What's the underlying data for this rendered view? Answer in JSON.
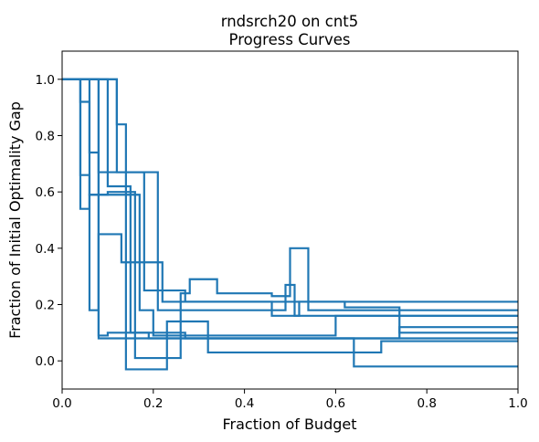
{
  "chart_data": {
    "type": "line",
    "title": [
      "rndsrch20 on cnt5",
      "Progress Curves"
    ],
    "xlabel": "Fraction of Budget",
    "ylabel": "Fraction of Initial Optimality Gap",
    "xlim": [
      0,
      1
    ],
    "ylim": [
      -0.1,
      1.1
    ],
    "xticks": [
      0.0,
      0.2,
      0.4,
      0.6,
      0.8,
      1.0
    ],
    "xtick_labels": [
      "0.0",
      "0.2",
      "0.4",
      "0.6",
      "0.8",
      "1.0"
    ],
    "yticks": [
      0.0,
      0.2,
      0.4,
      0.6,
      0.8,
      1.0
    ],
    "ytick_labels": [
      "0.0",
      "0.2",
      "0.4",
      "0.6",
      "0.8",
      "1.0"
    ],
    "grid": false,
    "step": "post",
    "color": "#1f77b4",
    "series": [
      {
        "x": [
          0,
          0.04,
          0.04,
          0.06,
          0.06,
          0.08,
          0.08,
          0.13,
          0.13,
          0.22,
          0.22,
          0.46,
          0.46,
          0.52,
          0.52,
          1.0
        ],
        "y": [
          1.0,
          1.0,
          0.92,
          0.92,
          0.18,
          0.18,
          0.45,
          0.45,
          0.35,
          0.35,
          0.21,
          0.21,
          0.16,
          0.16,
          0.21,
          0.21
        ]
      },
      {
        "x": [
          0,
          0.06,
          0.06,
          0.08,
          0.08,
          0.21,
          0.21,
          0.49,
          0.49,
          0.51,
          0.51,
          1.0
        ],
        "y": [
          1.0,
          1.0,
          0.74,
          0.74,
          0.67,
          0.67,
          0.18,
          0.18,
          0.27,
          0.27,
          0.16,
          0.16
        ]
      },
      {
        "x": [
          0,
          0.04,
          0.04,
          0.06,
          0.06,
          0.08,
          0.08,
          0.23,
          0.23,
          0.32,
          0.32,
          0.7,
          0.7,
          1.0
        ],
        "y": [
          1.0,
          1.0,
          0.54,
          0.54,
          0.59,
          0.59,
          0.08,
          0.08,
          0.14,
          0.14,
          0.03,
          0.03,
          0.07,
          0.07
        ]
      },
      {
        "x": [
          0,
          0.08,
          0.08,
          0.17,
          0.17,
          0.2,
          0.2,
          0.6,
          0.6,
          1.0
        ],
        "y": [
          1.0,
          1.0,
          0.59,
          0.59,
          0.18,
          0.18,
          0.09,
          0.09,
          0.16,
          0.16
        ]
      },
      {
        "x": [
          0,
          0.1,
          0.1,
          0.15,
          0.15,
          0.19,
          0.19,
          0.64,
          0.64,
          1.0
        ],
        "y": [
          1.0,
          1.0,
          0.62,
          0.62,
          0.1,
          0.1,
          0.08,
          0.08,
          -0.02,
          -0.02
        ]
      },
      {
        "x": [
          0,
          0.12,
          0.12,
          0.14,
          0.14,
          0.23,
          0.23,
          0.74,
          0.74,
          1.0
        ],
        "y": [
          1.0,
          1.0,
          0.84,
          0.84,
          -0.03,
          -0.03,
          0.08,
          0.08,
          0.12,
          0.12
        ]
      },
      {
        "x": [
          0,
          0.04,
          0.04,
          0.06,
          0.06,
          0.1,
          0.1,
          0.16,
          0.16,
          0.26,
          0.26,
          0.28,
          0.28,
          0.34,
          0.34,
          0.46,
          0.46,
          0.5,
          0.5,
          0.54,
          0.54,
          1.0
        ],
        "y": [
          1.0,
          1.0,
          0.66,
          0.66,
          0.59,
          0.59,
          0.6,
          0.6,
          0.01,
          0.01,
          0.24,
          0.24,
          0.29,
          0.29,
          0.24,
          0.24,
          0.23,
          0.23,
          0.4,
          0.4,
          0.18,
          0.18
        ]
      },
      {
        "x": [
          0,
          0.12,
          0.12,
          0.18,
          0.18,
          0.27,
          0.27,
          0.62,
          0.62,
          0.74,
          0.74,
          1.0
        ],
        "y": [
          1.0,
          1.0,
          0.67,
          0.67,
          0.25,
          0.25,
          0.21,
          0.21,
          0.19,
          0.19,
          0.1,
          0.1
        ]
      },
      {
        "x": [
          0,
          0.08,
          0.08,
          0.1,
          0.1,
          0.27,
          0.27,
          1.0
        ],
        "y": [
          1.0,
          1.0,
          0.09,
          0.09,
          0.1,
          0.1,
          0.08,
          0.08
        ]
      }
    ]
  }
}
